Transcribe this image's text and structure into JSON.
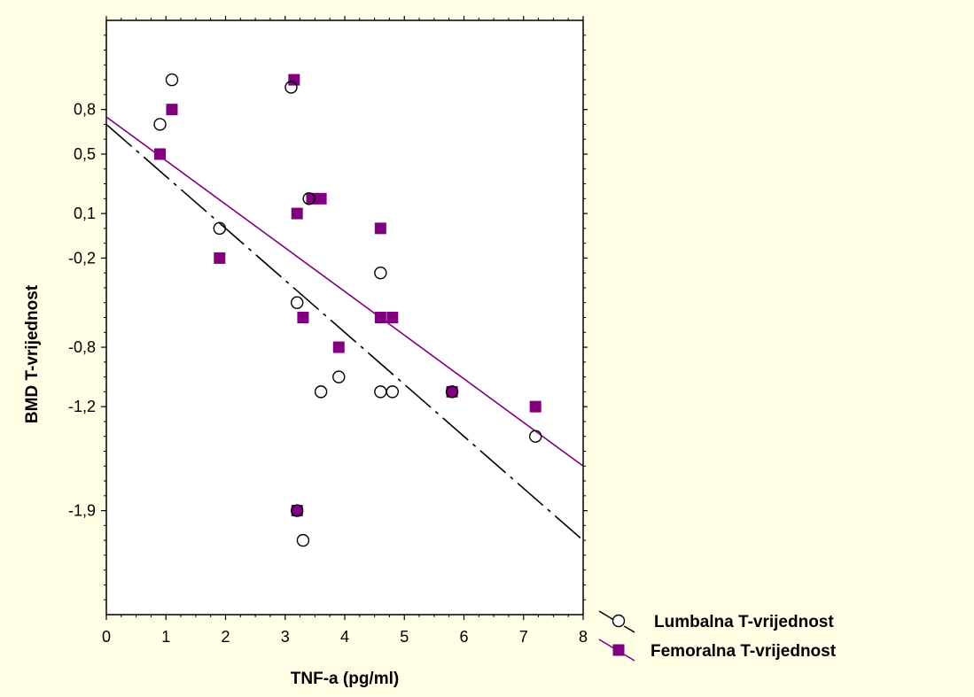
{
  "chart_data": {
    "type": "scatter",
    "xlabel": "TNF-a (pg/ml)",
    "ylabel": "BMD T-vrijednost",
    "xlim": [
      0,
      8
    ],
    "ylim": [
      -2.6,
      1.4
    ],
    "x_ticks": [
      "0",
      "1",
      "2",
      "3",
      "4",
      "5",
      "6",
      "7",
      "8"
    ],
    "y_ticks": [
      {
        "value": 0.8,
        "label": "0,8"
      },
      {
        "value": 0.5,
        "label": "0,5"
      },
      {
        "value": 0.1,
        "label": "0,1"
      },
      {
        "value": -0.2,
        "label": "-0,2"
      },
      {
        "value": -0.8,
        "label": "-0,8"
      },
      {
        "value": -1.2,
        "label": "-1,2"
      },
      {
        "value": -1.9,
        "label": "-1,9"
      }
    ],
    "grid": false,
    "legend_position": "bottom-right",
    "series": [
      {
        "name": "Lumbalna T-vrijednost",
        "marker": "circle-open",
        "color": "#000000",
        "fit_line": {
          "style": "dashed",
          "x": [
            0,
            8
          ],
          "y": [
            0.7,
            -2.1
          ]
        },
        "points": [
          {
            "x": 0.9,
            "y": 0.7
          },
          {
            "x": 1.1,
            "y": 1.0
          },
          {
            "x": 1.9,
            "y": 0.0
          },
          {
            "x": 3.1,
            "y": 0.95
          },
          {
            "x": 3.2,
            "y": -0.5
          },
          {
            "x": 3.2,
            "y": -1.9
          },
          {
            "x": 3.3,
            "y": -2.1
          },
          {
            "x": 3.4,
            "y": 0.2
          },
          {
            "x": 3.6,
            "y": -1.1
          },
          {
            "x": 3.9,
            "y": -1.0
          },
          {
            "x": 4.6,
            "y": -0.3
          },
          {
            "x": 4.6,
            "y": -1.1
          },
          {
            "x": 4.8,
            "y": -1.1
          },
          {
            "x": 5.8,
            "y": -1.1
          },
          {
            "x": 7.2,
            "y": -1.4
          }
        ]
      },
      {
        "name": "Femoralna T-vrijednost",
        "marker": "square-filled",
        "color": "#800080",
        "fit_line": {
          "style": "solid",
          "x": [
            0,
            8
          ],
          "y": [
            0.75,
            -1.6
          ]
        },
        "points": [
          {
            "x": 0.9,
            "y": 0.5
          },
          {
            "x": 1.1,
            "y": 0.8
          },
          {
            "x": 1.9,
            "y": -0.2
          },
          {
            "x": 3.15,
            "y": 1.0
          },
          {
            "x": 3.2,
            "y": 0.1
          },
          {
            "x": 3.2,
            "y": -1.9
          },
          {
            "x": 3.3,
            "y": -0.6
          },
          {
            "x": 3.45,
            "y": 0.2
          },
          {
            "x": 3.6,
            "y": 0.2
          },
          {
            "x": 3.9,
            "y": -0.8
          },
          {
            "x": 4.6,
            "y": 0.0
          },
          {
            "x": 4.6,
            "y": -0.6
          },
          {
            "x": 4.8,
            "y": -0.6
          },
          {
            "x": 5.8,
            "y": -1.1
          },
          {
            "x": 7.2,
            "y": -1.2
          }
        ]
      }
    ]
  }
}
